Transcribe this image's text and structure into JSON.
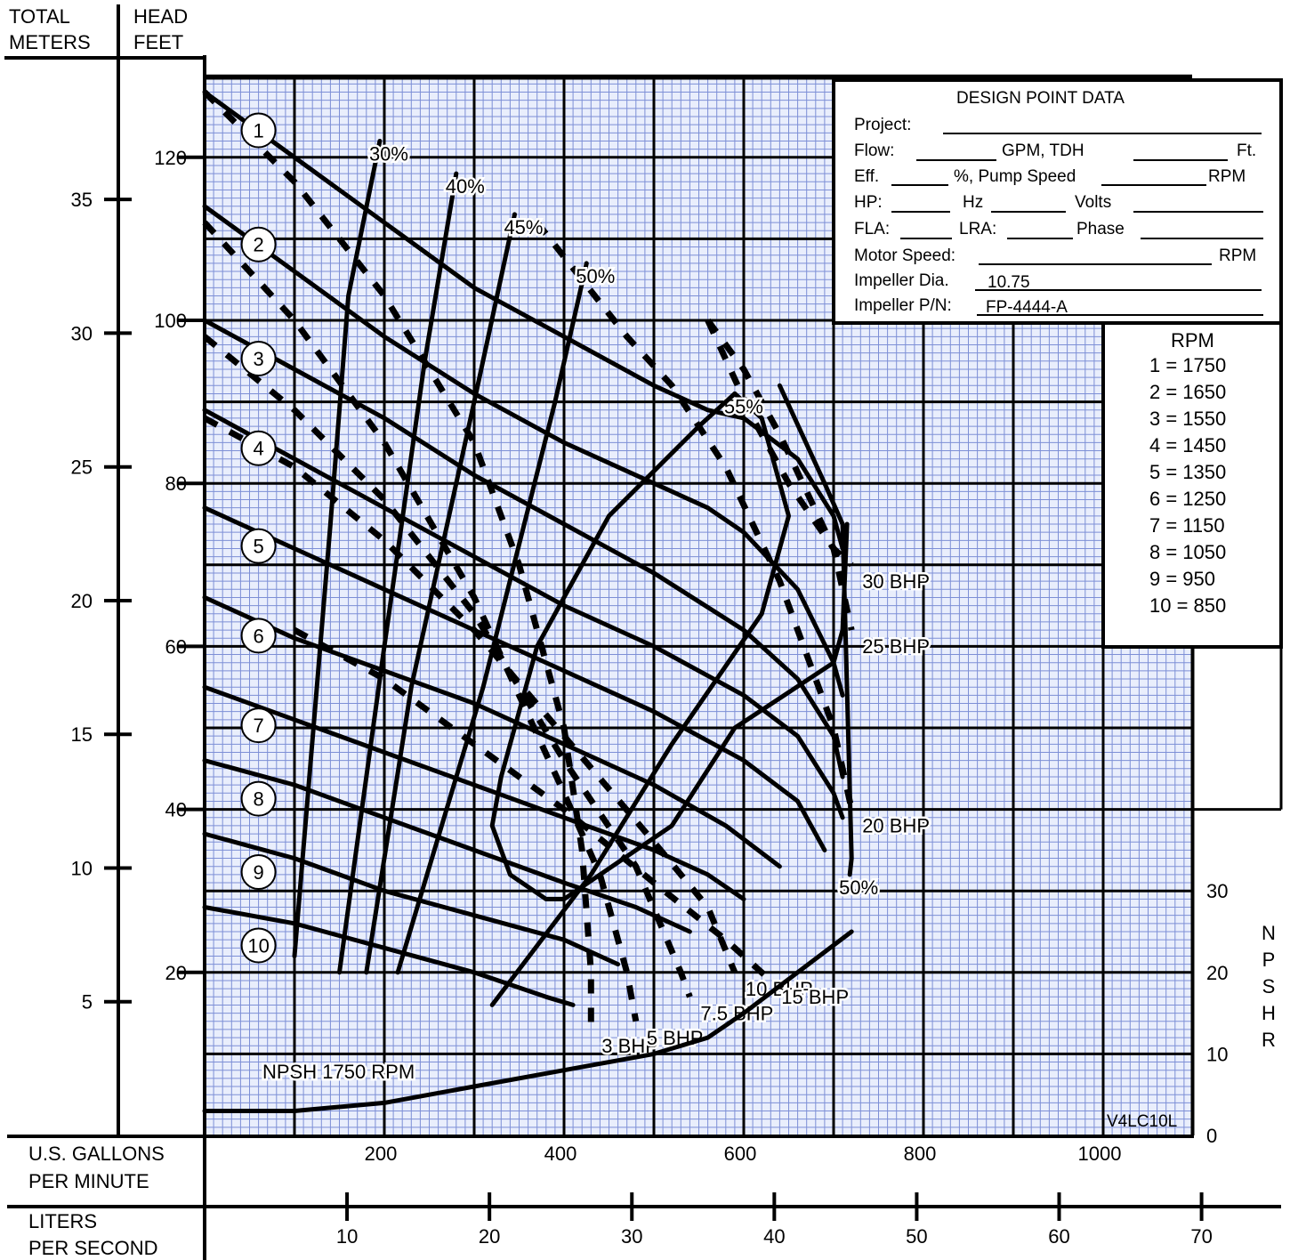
{
  "header": {
    "left_label_line1": "TOTAL",
    "left_label_line2": "METERS",
    "right_label_line1": "HEAD",
    "right_label_line2": "FEET"
  },
  "footer": {
    "gpm_label_line1": "U.S. GALLONS",
    "gpm_label_line2": "PER MINUTE",
    "lps_label_line1": "LITERS",
    "lps_label_line2": "PER SECOND"
  },
  "design_point": {
    "title": "DESIGN POINT DATA",
    "project_label": "Project:",
    "flow_label": "Flow:",
    "gpm_tdh": "GPM, TDH",
    "ft": "Ft.",
    "eff_label": "Eff.",
    "pct_pump_speed": "%, Pump Speed",
    "rpm": "RPM",
    "hp_label": "HP:",
    "hz_label": "Hz",
    "volts_label": "Volts",
    "fla_label": "FLA:",
    "lra_label": "LRA:",
    "phase_label": "Phase",
    "motor_speed_label": "Motor Speed:",
    "impeller_dia_label": "Impeller Dia.",
    "impeller_dia_value": "10.75",
    "impeller_pn_label": "Impeller  P/N:",
    "impeller_pn_value": "FP-4444-A"
  },
  "rpm_table": {
    "title": "RPM",
    "rows": [
      "1 = 1750",
      "2 = 1650",
      "3 = 1550",
      "4 = 1450",
      "5 = 1350",
      "6 = 1250",
      "7 = 1150",
      "8 = 1050",
      "9 =   950",
      "10 =  850"
    ]
  },
  "npshr_label": [
    "N",
    "P",
    "S",
    "H",
    "R"
  ],
  "model_code": "V4LC10L",
  "chart_data": {
    "type": "line",
    "x_axis_gpm": {
      "ticks": [
        200,
        400,
        600,
        800,
        1000
      ],
      "range": [
        0,
        1100
      ]
    },
    "x_axis_lps": {
      "ticks": [
        10,
        20,
        30,
        40,
        50,
        60,
        70
      ]
    },
    "y_axis_feet": {
      "ticks": [
        20,
        40,
        60,
        80,
        100,
        120
      ],
      "range": [
        0,
        130
      ]
    },
    "y_axis_meters": {
      "ticks": [
        5,
        10,
        15,
        20,
        25,
        30,
        35
      ]
    },
    "y_axis_npshr": {
      "ticks": [
        0,
        10,
        20,
        30
      ]
    },
    "speed_curves": [
      {
        "label": "1",
        "points": [
          [
            0,
            128
          ],
          [
            100,
            120
          ],
          [
            200,
            112
          ],
          [
            300,
            104
          ],
          [
            400,
            98
          ],
          [
            500,
            92
          ],
          [
            560,
            89
          ],
          [
            600,
            88
          ],
          [
            660,
            83
          ],
          [
            700,
            76
          ],
          [
            710,
            72
          ]
        ]
      },
      {
        "label": "2",
        "points": [
          [
            0,
            114
          ],
          [
            100,
            106
          ],
          [
            200,
            98
          ],
          [
            300,
            91
          ],
          [
            400,
            85
          ],
          [
            500,
            80
          ],
          [
            560,
            77
          ],
          [
            600,
            74
          ],
          [
            660,
            67
          ],
          [
            700,
            58
          ],
          [
            710,
            54
          ]
        ]
      },
      {
        "label": "3",
        "points": [
          [
            0,
            100
          ],
          [
            100,
            94
          ],
          [
            200,
            88
          ],
          [
            300,
            81
          ],
          [
            400,
            75
          ],
          [
            500,
            69
          ],
          [
            600,
            62
          ],
          [
            660,
            56
          ],
          [
            700,
            49
          ],
          [
            710,
            44
          ]
        ]
      },
      {
        "label": "4",
        "points": [
          [
            0,
            89
          ],
          [
            100,
            83
          ],
          [
            200,
            77
          ],
          [
            300,
            71
          ],
          [
            400,
            65
          ],
          [
            500,
            60
          ],
          [
            600,
            54
          ],
          [
            660,
            49
          ],
          [
            700,
            42
          ],
          [
            710,
            39
          ]
        ]
      },
      {
        "label": "5",
        "points": [
          [
            0,
            77
          ],
          [
            100,
            72
          ],
          [
            200,
            67
          ],
          [
            300,
            62
          ],
          [
            400,
            57
          ],
          [
            500,
            52
          ],
          [
            600,
            46
          ],
          [
            660,
            41
          ],
          [
            690,
            35
          ]
        ]
      },
      {
        "label": "6",
        "points": [
          [
            0,
            66
          ],
          [
            100,
            61
          ],
          [
            200,
            57
          ],
          [
            300,
            53
          ],
          [
            400,
            48
          ],
          [
            500,
            43
          ],
          [
            580,
            38
          ],
          [
            640,
            33
          ]
        ]
      },
      {
        "label": "7",
        "points": [
          [
            0,
            55
          ],
          [
            100,
            51
          ],
          [
            200,
            47
          ],
          [
            300,
            43
          ],
          [
            400,
            39
          ],
          [
            500,
            35
          ],
          [
            560,
            32
          ],
          [
            600,
            29
          ]
        ]
      },
      {
        "label": "8",
        "points": [
          [
            0,
            46
          ],
          [
            100,
            43
          ],
          [
            200,
            39
          ],
          [
            300,
            35
          ],
          [
            400,
            31
          ],
          [
            480,
            28
          ],
          [
            540,
            25
          ]
        ]
      },
      {
        "label": "9",
        "points": [
          [
            0,
            37
          ],
          [
            100,
            34
          ],
          [
            200,
            30
          ],
          [
            300,
            27
          ],
          [
            400,
            24
          ],
          [
            460,
            21
          ]
        ]
      },
      {
        "label": "10",
        "points": [
          [
            0,
            28
          ],
          [
            100,
            26
          ],
          [
            200,
            23
          ],
          [
            300,
            20
          ],
          [
            380,
            17
          ],
          [
            410,
            16
          ]
        ]
      }
    ],
    "efficiency_curves": [
      {
        "label": "30%",
        "points": [
          [
            100,
            22
          ],
          [
            140,
            75
          ],
          [
            160,
            103
          ],
          [
            195,
            122
          ]
        ]
      },
      {
        "label": "40%",
        "points": [
          [
            150,
            20
          ],
          [
            200,
            60
          ],
          [
            245,
            95
          ],
          [
            280,
            118
          ]
        ]
      },
      {
        "label": "45%",
        "points": [
          [
            180,
            20
          ],
          [
            230,
            55
          ],
          [
            300,
            90
          ],
          [
            345,
            113
          ]
        ]
      },
      {
        "label": "50%",
        "points": [
          [
            215,
            20
          ],
          [
            310,
            55
          ],
          [
            390,
            90
          ],
          [
            425,
            107
          ]
        ]
      },
      {
        "label": "55%",
        "points": [
          [
            320,
            16
          ],
          [
            430,
            32
          ],
          [
            520,
            48
          ],
          [
            620,
            64
          ],
          [
            650,
            76
          ],
          [
            620,
            88
          ],
          [
            590,
            91
          ]
        ]
      },
      {
        "label": "55% loop",
        "points": [
          [
            590,
            91
          ],
          [
            550,
            87
          ],
          [
            450,
            76
          ],
          [
            370,
            60
          ],
          [
            330,
            44
          ],
          [
            320,
            38
          ],
          [
            340,
            32
          ],
          [
            380,
            29
          ],
          [
            400,
            29
          ],
          [
            440,
            32
          ],
          [
            520,
            38
          ],
          [
            590,
            50
          ],
          [
            700,
            58
          ],
          [
            710,
            62
          ],
          [
            715,
            75
          ]
        ]
      },
      {
        "label": "50%",
        "points": [
          [
            640,
            92
          ],
          [
            690,
            80
          ],
          [
            710,
            75
          ],
          [
            720,
            34
          ],
          [
            718,
            32
          ]
        ]
      }
    ],
    "bhp_curves": [
      {
        "label": "3 BHP",
        "points": [
          [
            0,
            128
          ],
          [
            100,
            117
          ],
          [
            200,
            103
          ],
          [
            300,
            85
          ],
          [
            350,
            70
          ],
          [
            400,
            50
          ],
          [
            420,
            35
          ],
          [
            430,
            20
          ],
          [
            430,
            13
          ]
        ]
      },
      {
        "label": "5 BHP",
        "points": [
          [
            0,
            112
          ],
          [
            100,
            100
          ],
          [
            200,
            85
          ],
          [
            300,
            66
          ],
          [
            400,
            42
          ],
          [
            440,
            32
          ],
          [
            470,
            20
          ],
          [
            480,
            14
          ]
        ]
      },
      {
        "label": "7.5 BHP",
        "points": [
          [
            0,
            98
          ],
          [
            100,
            89
          ],
          [
            200,
            78
          ],
          [
            300,
            64
          ],
          [
            400,
            46
          ],
          [
            480,
            33
          ],
          [
            530,
            20
          ],
          [
            540,
            17
          ]
        ]
      },
      {
        "label": "10 BHP",
        "points": [
          [
            0,
            88
          ],
          [
            100,
            82
          ],
          [
            200,
            73
          ],
          [
            300,
            62
          ],
          [
            400,
            49
          ],
          [
            500,
            36
          ],
          [
            560,
            28
          ],
          [
            590,
            20
          ]
        ]
      },
      {
        "label": "15 BHP",
        "points": [
          [
            100,
            62
          ],
          [
            200,
            56
          ],
          [
            300,
            48
          ],
          [
            400,
            40
          ],
          [
            500,
            31
          ],
          [
            580,
            24
          ],
          [
            630,
            19
          ]
        ]
      },
      {
        "label": "20 BHP",
        "points": [
          [
            370,
            112
          ],
          [
            420,
            105
          ],
          [
            470,
            98
          ],
          [
            520,
            92
          ],
          [
            580,
            82
          ],
          [
            640,
            68
          ],
          [
            700,
            50
          ],
          [
            720,
            40
          ]
        ]
      },
      {
        "label": "25 BHP",
        "points": [
          [
            560,
            100
          ],
          [
            600,
            94
          ],
          [
            640,
            86
          ],
          [
            700,
            72
          ],
          [
            720,
            62
          ]
        ]
      },
      {
        "label": "30 BHP",
        "points": [
          [
            560,
            100
          ],
          [
            610,
            88
          ],
          [
            650,
            80
          ],
          [
            700,
            72
          ],
          [
            720,
            70
          ]
        ]
      }
    ],
    "npsh_curve": {
      "label": "NPSH 1750 RPM",
      "points": [
        [
          0,
          3
        ],
        [
          100,
          3
        ],
        [
          200,
          4
        ],
        [
          300,
          6
        ],
        [
          400,
          8
        ],
        [
          500,
          10
        ],
        [
          560,
          12
        ],
        [
          600,
          15
        ],
        [
          660,
          20
        ],
        [
          720,
          25
        ]
      ]
    }
  }
}
